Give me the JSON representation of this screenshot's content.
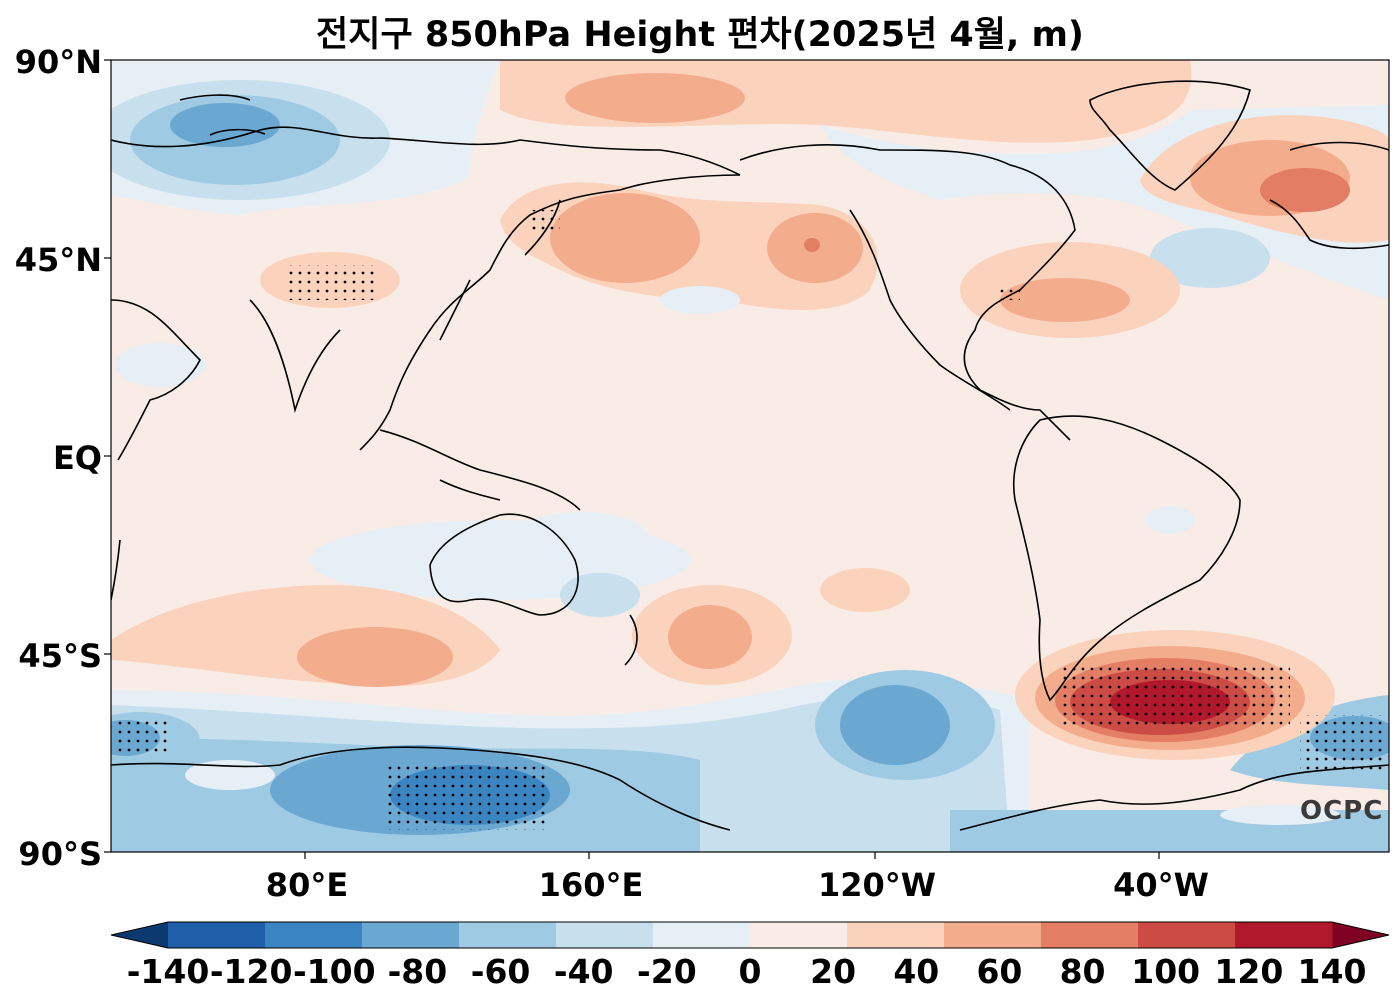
{
  "title": "전지구 850hPa Height 편차(2025년 4월, m)",
  "logo_text": "OCPC",
  "map": {
    "projection": "Equirectangular, centered 180°",
    "variable": "850hPa Height anomaly",
    "period": "2025년 4월",
    "unit": "m",
    "stippling": "statistically significant areas (dots)"
  },
  "axes": {
    "y_ticks": [
      "90°N",
      "45°N",
      "EQ",
      "45°S",
      "90°S"
    ],
    "x_ticks": [
      "80°E",
      "160°E",
      "120°W",
      "40°W"
    ]
  },
  "colorbar": {
    "labels": [
      "-140",
      "-120",
      "-100",
      "-80",
      "-60",
      "-40",
      "-20",
      "0",
      "20",
      "40",
      "60",
      "80",
      "100",
      "120",
      "140"
    ],
    "colors": [
      "#0d3a6e",
      "#1f5ea8",
      "#3a84c2",
      "#6aa8d2",
      "#9fcae3",
      "#c8dfee",
      "#e6eff5",
      "#f9ece6",
      "#fbd3bd",
      "#f4ad8c",
      "#e37d63",
      "#cc4c45",
      "#b2182b",
      "#7f0022"
    ],
    "extend": "both"
  },
  "anomaly_palette": {
    "neg20": "#e6eff5",
    "neg40": "#c8dfee",
    "neg60": "#9fcae3",
    "neg80": "#6aa8d2",
    "zero": "#f9ece6",
    "pos20": "#fbd3bd",
    "pos40": "#f4ad8c",
    "pos60": "#e37d63",
    "pos80": "#cc4c45",
    "pos100": "#b2182b"
  }
}
